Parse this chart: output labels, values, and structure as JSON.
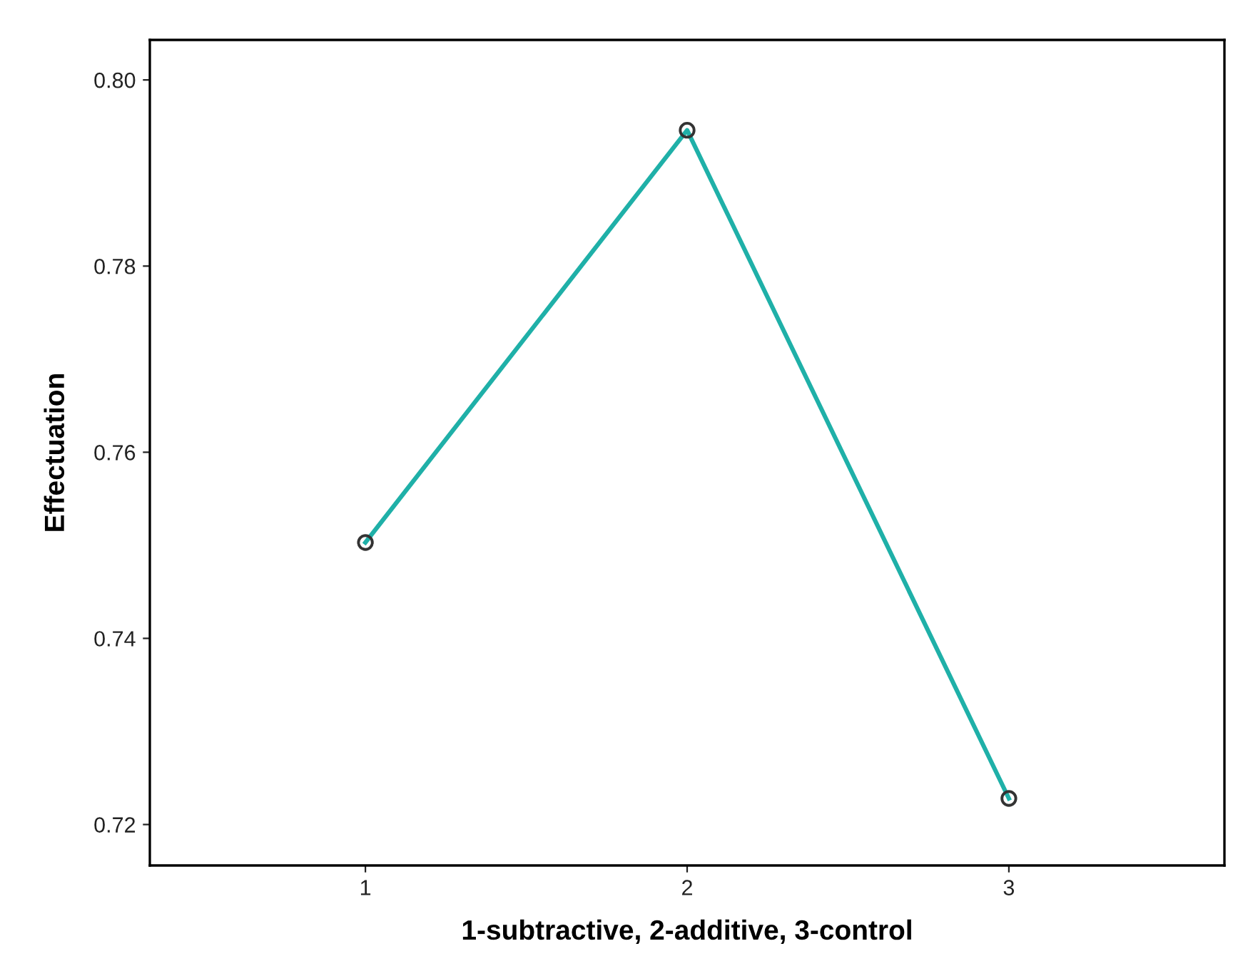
{
  "chart_data": {
    "type": "line",
    "xlabel": "1-subtractive, 2-additive, 3-control",
    "ylabel": "Effectuation",
    "x": [
      1,
      2,
      3
    ],
    "series": [
      {
        "color": "#1fb0a8",
        "values": [
          0.7503,
          0.7946,
          0.7228
        ]
      }
    ],
    "xlim": [
      0.33,
      3.67
    ],
    "xticks": [
      1,
      2,
      3
    ],
    "ylim": [
      0.7156,
      0.8043
    ],
    "yticks": [
      {
        "value": 0.72,
        "label": "0.72"
      },
      {
        "value": 0.74,
        "label": "0.74"
      },
      {
        "value": 0.76,
        "label": "0.76"
      },
      {
        "value": 0.78,
        "label": "0.78"
      },
      {
        "value": 0.8,
        "label": "0.80"
      }
    ],
    "marker": "circle",
    "line_style": "solid",
    "grid": false
  }
}
